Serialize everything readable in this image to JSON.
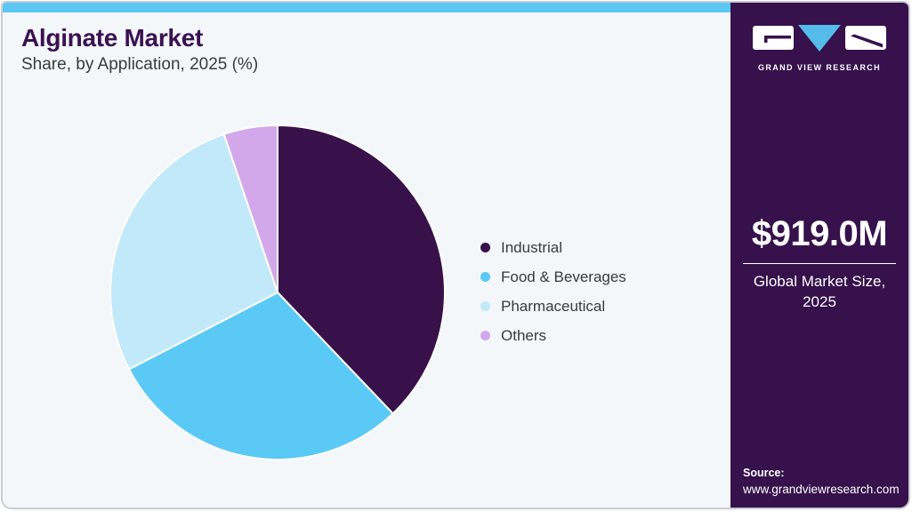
{
  "header": {
    "title": "Alginate Market",
    "subtitle": "Share, by Application, 2025 (%)"
  },
  "chart_data": {
    "type": "pie",
    "title": "Alginate Market Share, by Application, 2025 (%)",
    "unit": "%",
    "start_angle_deg": 0,
    "direction": "clockwise",
    "legend_position": "right",
    "slices": [
      {
        "label": "Industrial",
        "value": 37.9,
        "color": "#38114B"
      },
      {
        "label": "Food & Beverages",
        "value": 29.5,
        "color": "#5BC9F5"
      },
      {
        "label": "Pharmaceutical",
        "value": 27.4,
        "color": "#C2E9FA"
      },
      {
        "label": "Others",
        "value": 5.2,
        "color": "#D2A8EB"
      }
    ]
  },
  "sidebar": {
    "logo_text": "GRAND VIEW RESEARCH",
    "market_size": "$919.0M",
    "market_size_label": "Global Market Size, 2025",
    "source_label": "Source:",
    "source_url": "www.grandviewresearch.com"
  },
  "colors": {
    "top_bar": "#5CC7F3",
    "sidebar_bg": "#36114B",
    "main_bg": "#F3F7FA",
    "title_text": "#3A1152",
    "body_text": "#3A3A3A",
    "border": "#C9CBD3",
    "logo_triangle": "#55BBE8",
    "logo_glyph": "#36114B",
    "pie_stroke": "#FFFFFF"
  }
}
